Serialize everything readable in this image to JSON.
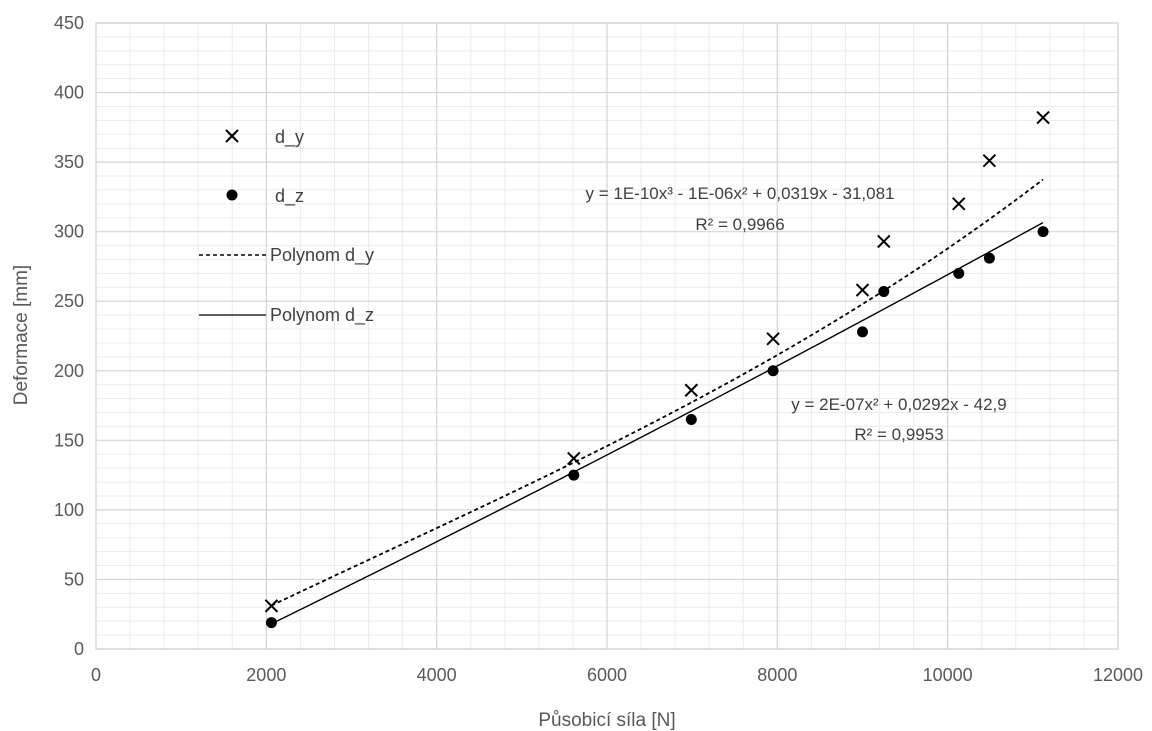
{
  "chart_data": {
    "type": "scatter",
    "title": "",
    "xlabel": "Působicí síla [N]",
    "ylabel": "Deformace [mm]",
    "xlim": [
      0,
      12000
    ],
    "ylim": [
      0,
      450
    ],
    "x_ticks": [
      0,
      2000,
      4000,
      6000,
      8000,
      10000,
      12000
    ],
    "y_ticks": [
      0,
      50,
      100,
      150,
      200,
      250,
      300,
      350,
      400,
      450
    ],
    "x_tick_labels": [
      "0",
      "2000",
      "4000",
      "6000",
      "8000",
      "10000",
      "12000"
    ],
    "y_tick_labels": [
      "0",
      "50",
      "100",
      "150",
      "200",
      "250",
      "300",
      "350",
      "400",
      "450"
    ],
    "grid": true,
    "minor_grid": true,
    "legend_position": "top-left inside",
    "series": [
      {
        "name": "d_y",
        "marker": "x",
        "color": "#000000",
        "x": [
          2060,
          5610,
          6990,
          7950,
          9000,
          9250,
          10130,
          10490,
          11120
        ],
        "y": [
          31,
          137,
          186,
          223,
          258,
          293,
          320,
          351,
          382
        ]
      },
      {
        "name": "d_z",
        "marker": "circle",
        "color": "#000000",
        "x": [
          2060,
          5610,
          6990,
          7950,
          9000,
          9250,
          10130,
          10490,
          11120
        ],
        "y": [
          19,
          125,
          165,
          200,
          228,
          257,
          270,
          281,
          300
        ]
      }
    ],
    "trendlines": [
      {
        "name": "Polynom d_y",
        "style": "dashed",
        "coefficients": [
          1e-10,
          -1e-06,
          0.0319,
          -31.081
        ],
        "x_range": [
          2060,
          11120
        ],
        "equation": "y = 1E-10x³ - 1E-06x² + 0,0319x - 31,081",
        "r2": "R² = 0,9966"
      },
      {
        "name": "Polynom d_z",
        "style": "solid",
        "coefficients": [
          0,
          2e-07,
          0.0292,
          -42.9
        ],
        "x_range": [
          2060,
          11120
        ],
        "equation": "y = 2E-07x² + 0,0292x - 42,9",
        "r2": "R² = 0,9953"
      }
    ]
  }
}
